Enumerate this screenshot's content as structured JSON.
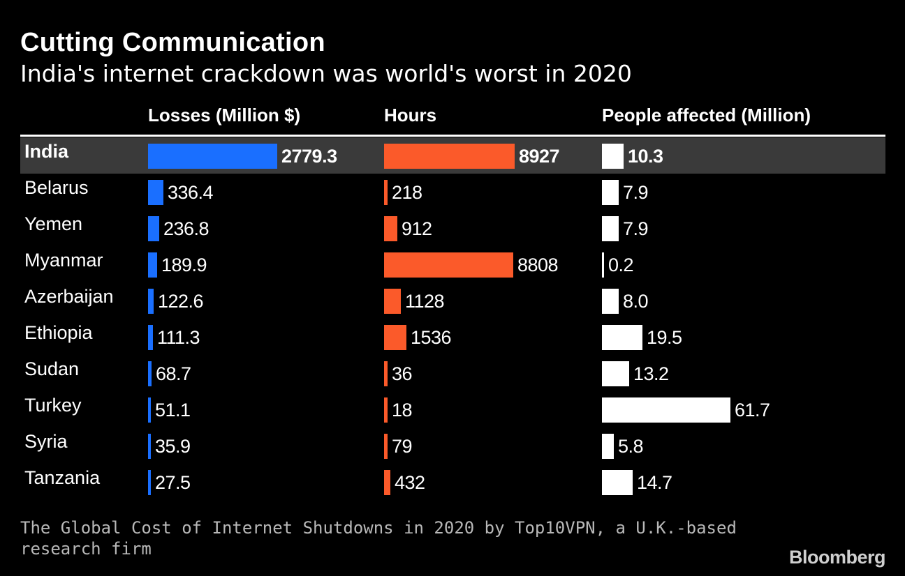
{
  "title": "Cutting Communication",
  "subtitle": "India's internet crackdown was world's worst in 2020",
  "source": "The Global Cost of Internet Shutdowns in 2020 by Top10VPN, a U.K.-based research firm",
  "brand": "Bloomberg",
  "colors": {
    "losses": "#1a6fff",
    "hours": "#fb5a2a",
    "people": "#ffffff",
    "highlight_row": "#3a3a3a",
    "background": "#000000"
  },
  "chart_data": {
    "type": "bar",
    "title": "Cutting Communication",
    "subtitle": "India's internet crackdown was world's worst in 2020",
    "orientation": "horizontal",
    "highlighted_category": "India",
    "categories": [
      "India",
      "Belarus",
      "Yemen",
      "Myanmar",
      "Azerbaijan",
      "Ethiopia",
      "Sudan",
      "Turkey",
      "Syria",
      "Tanzania"
    ],
    "series": [
      {
        "name": "Losses (Million $)",
        "values": [
          2779.3,
          336.4,
          236.8,
          189.9,
          122.6,
          111.3,
          68.7,
          51.1,
          35.9,
          27.5
        ],
        "labels": [
          "2779.3",
          "336.4",
          "236.8",
          "189.9",
          "122.6",
          "111.3",
          "68.7",
          "51.1",
          "35.9",
          "27.5"
        ]
      },
      {
        "name": "Hours",
        "values": [
          8927,
          218,
          912,
          8808,
          1128,
          1536,
          36,
          18,
          79,
          432
        ],
        "labels": [
          "8927",
          "218",
          "912",
          "8808",
          "1128",
          "1536",
          "36",
          "18",
          "79",
          "432"
        ]
      },
      {
        "name": "People affected (Million)",
        "values": [
          10.3,
          7.9,
          7.9,
          0.2,
          8.0,
          19.5,
          13.2,
          61.7,
          5.8,
          14.7
        ],
        "labels": [
          "10.3",
          "7.9",
          "7.9",
          "0.2",
          "8.0",
          "19.5",
          "13.2",
          "61.7",
          "5.8",
          "14.7"
        ]
      }
    ],
    "legend": "none",
    "grid": false
  }
}
